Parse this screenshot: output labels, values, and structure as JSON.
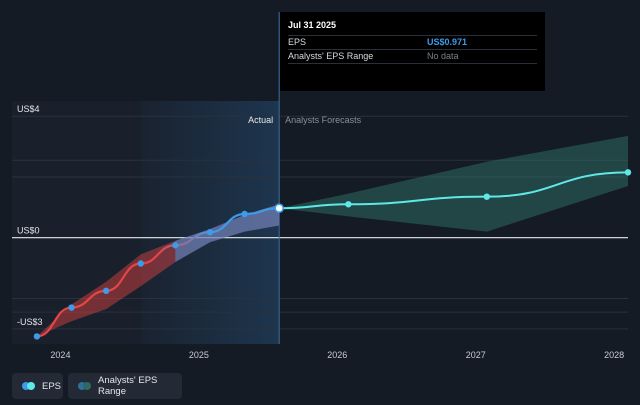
{
  "tooltip": {
    "date": "Jul 31 2025",
    "rows": [
      {
        "label": "EPS",
        "value": "US$0.971"
      },
      {
        "label": "Analysts' EPS Range",
        "value": "No data"
      }
    ]
  },
  "legend": {
    "eps_label": "EPS",
    "range_label": "Analysts' EPS Range"
  },
  "colors": {
    "eps_up": "#3d9be9",
    "eps_down": "#e64545",
    "forecast": "#5ee8e8",
    "range_fill": "#2e6a63",
    "background": "#151b24"
  },
  "chart_data": {
    "type": "line",
    "section_labels": {
      "actual": "Actual",
      "forecast": "Analysts Forecasts"
    },
    "y_ticks": [
      {
        "value": 4,
        "label": "US$4"
      },
      {
        "value": 0,
        "label": "US$0"
      },
      {
        "value": -3,
        "label": "-US$3"
      }
    ],
    "x_ticks": [
      {
        "value": 2024.0,
        "label": "2024"
      },
      {
        "value": 2025.0,
        "label": "2025"
      },
      {
        "value": 2026.0,
        "label": "2026"
      },
      {
        "value": 2027.0,
        "label": "2027"
      },
      {
        "value": 2028.0,
        "label": "2028"
      }
    ],
    "xlim": [
      2023.65,
      2028.1
    ],
    "ylim": [
      -3.5,
      4.5
    ],
    "divider_x": 2025.58,
    "past_region_start": 2024.58,
    "series": [
      {
        "name": "EPS",
        "role": "actual",
        "points": [
          {
            "x": 2023.83,
            "y": -3.25
          },
          {
            "x": 2024.08,
            "y": -2.3
          },
          {
            "x": 2024.33,
            "y": -1.75
          },
          {
            "x": 2024.58,
            "y": -0.85
          },
          {
            "x": 2024.83,
            "y": -0.25
          },
          {
            "x": 2025.08,
            "y": 0.18
          },
          {
            "x": 2025.33,
            "y": 0.78
          },
          {
            "x": 2025.58,
            "y": 0.971
          }
        ],
        "range_low": [
          -3.25,
          -2.75,
          -2.35,
          -1.6,
          -0.8,
          -0.15,
          0.2,
          0.4
        ],
        "range_high": [
          -3.25,
          -2.2,
          -1.45,
          -0.55,
          -0.1,
          0.28,
          0.75,
          1.1
        ]
      },
      {
        "name": "Analysts Forecasts",
        "role": "forecast",
        "points": [
          {
            "x": 2025.58,
            "y": 0.971
          },
          {
            "x": 2026.08,
            "y": 1.1
          },
          {
            "x": 2027.08,
            "y": 1.35
          },
          {
            "x": 2028.1,
            "y": 2.15
          }
        ],
        "range_low": [
          0.971,
          0.7,
          0.2,
          1.7
        ],
        "range_high": [
          0.971,
          1.45,
          2.5,
          3.35
        ]
      }
    ]
  }
}
